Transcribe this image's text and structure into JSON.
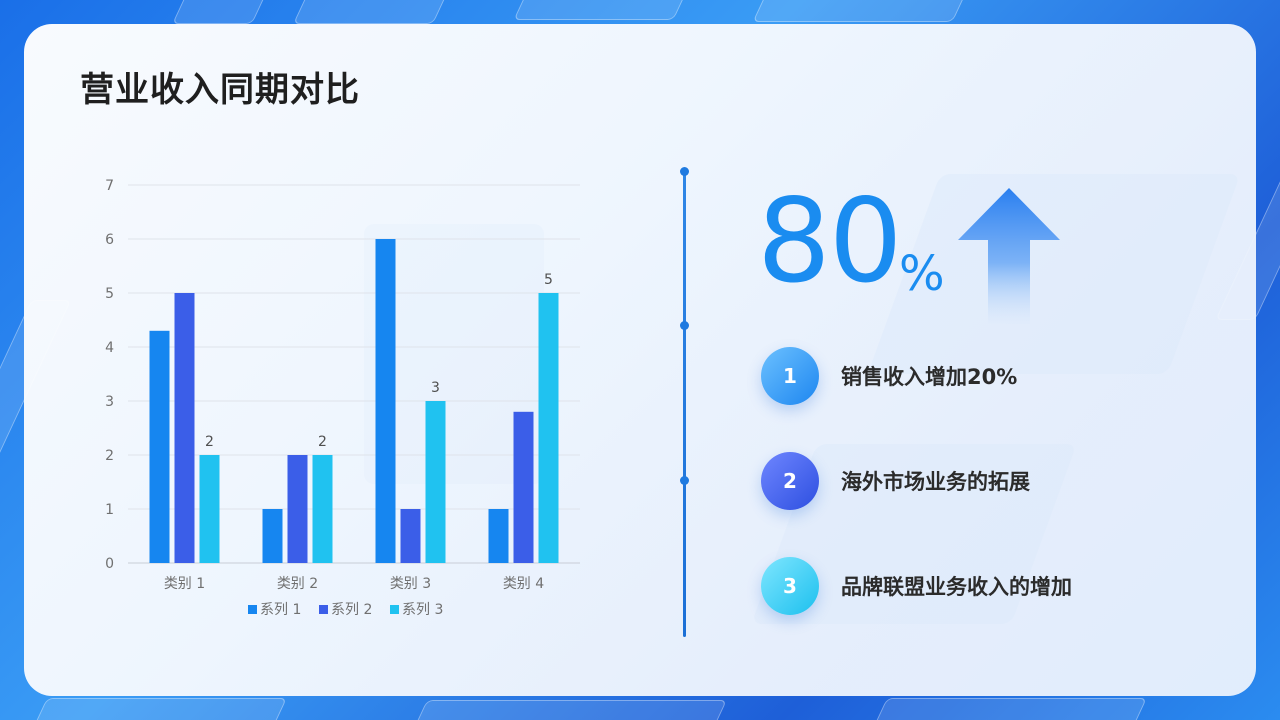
{
  "title": "营业收入同期对比",
  "colors": {
    "series1": "#1686f0",
    "series2": "#3b5ee8",
    "series3": "#20c2f0",
    "accent": "#1a8cf0"
  },
  "highlight": {
    "value": "80",
    "unit": "%",
    "icon": "up-arrow-icon"
  },
  "items": [
    {
      "number": "1",
      "label": "销售收入增加20%"
    },
    {
      "number": "2",
      "label": "海外市场业务的拓展"
    },
    {
      "number": "3",
      "label": "品牌联盟业务收入的增加"
    }
  ],
  "chart_data": {
    "type": "bar",
    "categories": [
      "类别 1",
      "类别 2",
      "类别 3",
      "类别 4"
    ],
    "series": [
      {
        "name": "系列 1",
        "values": [
          4.3,
          1,
          6,
          1
        ],
        "data_labels": []
      },
      {
        "name": "系列 2",
        "values": [
          5,
          2,
          1,
          2.8
        ],
        "data_labels": []
      },
      {
        "name": "系列 3",
        "values": [
          2,
          2,
          3,
          5
        ],
        "data_labels": [
          "2",
          "2",
          "3",
          "5"
        ]
      }
    ],
    "ylim": [
      0,
      7
    ],
    "yticks": [
      0,
      1,
      2,
      3,
      4,
      5,
      6,
      7
    ],
    "xlabel": "",
    "ylabel": "",
    "grid": true,
    "legend": "bottom"
  }
}
